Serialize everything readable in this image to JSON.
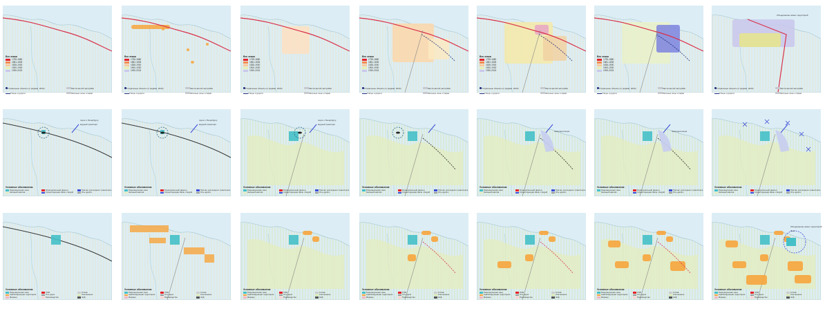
{
  "colors": {
    "sea": "#dcedf5",
    "land": "#ffffff",
    "grid": "#e9e6c8",
    "road": "#d9304a",
    "water": "#45c0c8",
    "forest": "#e3ecc0",
    "urban": "#f7a43c",
    "blue": "#3a4bd6"
  },
  "row1": {
    "age_title": "Век этажи",
    "age_items": [
      {
        "label": "1755-1880",
        "color": "#e5212b"
      },
      {
        "label": "1881-1835",
        "color": "#f58b4e"
      },
      {
        "label": "1835-1900",
        "color": "#fbc99a"
      },
      {
        "label": "1900-1930",
        "color": "#e7efb5"
      },
      {
        "label": "1930-2024",
        "color": "#c9c7ec"
      }
    ],
    "bottom": [
      {
        "text": "Утиральные объекты (с рядами, 2024)",
        "icon": "dot-icon"
      },
      {
        "text": "Места жилой застройки",
        "icon": "gray-swatch"
      },
      {
        "text": "Улицы и дороги",
        "icon": "line-icon"
      },
      {
        "text": "Зеленые зоны и парки",
        "icon": "gray-swatch"
      }
    ],
    "panel7_callout": "Объединение новых территорий"
  },
  "row2": {
    "legend_title": "Условные обозначения",
    "items": [
      {
        "label": "Рекреационная зона",
        "color": "#45c0c8"
      },
      {
        "label": "Муниципальный дворец",
        "color": "#e5212b"
      },
      {
        "label": "Причал для водного транспорта",
        "color": "#3a4bd6"
      },
      {
        "label": "Зеленый массив",
        "color": "#e3ecc0"
      },
      {
        "label": "Существующая связь с водой",
        "color": "#3a4bd6"
      },
      {
        "label": "Ось дороги",
        "color": "#999999"
      }
    ],
    "callouts": {
      "stpb": "порог к Петербургу",
      "water_transport": "водный транспорт",
      "green_massif": "Зеленый массив",
      "sea_waters": "Акватория моря"
    }
  },
  "row3": {
    "legend_title": "Условные обозначения",
    "items": [
      {
        "label": "Рекреационная зона",
        "color": "#45c0c8"
      },
      {
        "label": "ОЭЗ",
        "color": "#e5212b"
      },
      {
        "label": "Сплав",
        "color": "#cccccc"
      },
      {
        "label": "Арабизирующая территория",
        "color": "#f7a43c"
      },
      {
        "label": "Ось дорог",
        "color": "#999999"
      },
      {
        "label": "Озеленение",
        "color": "#d8e8a8"
      },
      {
        "label": "Фермер",
        "color": "#f3b6c2"
      },
      {
        "label": "Производство",
        "color": "#ffd2d2"
      },
      {
        "label": "Ж/Д",
        "color": "#555555"
      }
    ],
    "callouts": {
      "new_territory": "Объединение новых территорий",
      "port": "Порт"
    }
  }
}
